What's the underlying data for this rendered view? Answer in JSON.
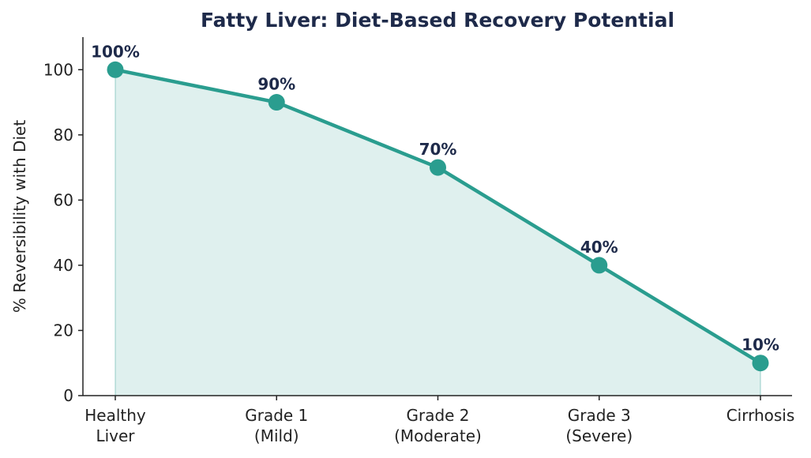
{
  "chart_data": {
    "type": "line",
    "title": "Fatty Liver: Diet-Based Recovery Potential",
    "xlabel": "",
    "ylabel": "% Reversibility with Diet",
    "categories": [
      [
        "Healthy",
        "Liver"
      ],
      [
        "Grade 1",
        "(Mild)"
      ],
      [
        "Grade 2",
        "(Moderate)"
      ],
      [
        "Grade 3",
        "(Severe)"
      ],
      [
        "Cirrhosis"
      ]
    ],
    "series": [
      {
        "values": [
          100,
          90,
          70,
          40,
          10
        ]
      }
    ],
    "data_labels": [
      "100%",
      "90%",
      "70%",
      "40%",
      "10%"
    ],
    "ylim": [
      0,
      110
    ],
    "yticks": [
      0,
      20,
      40,
      60,
      80,
      100
    ],
    "area_fill": true,
    "grid": false,
    "colors": {
      "line": "#2a9d8f",
      "fill": "#2a9d8f",
      "title": "#1e2a4a",
      "labels": "#1e2a4a",
      "axis": "#222222"
    }
  }
}
